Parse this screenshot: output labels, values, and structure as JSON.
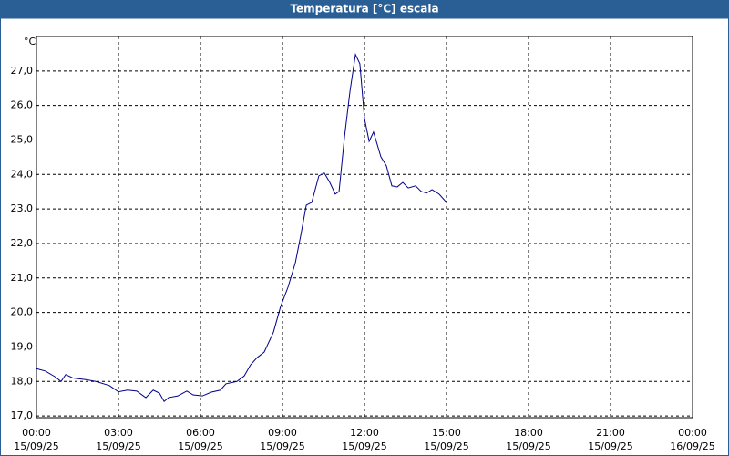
{
  "chart_data": {
    "type": "line",
    "title": "Temperatura [°C] escala",
    "y_unit": "°C",
    "xlim": [
      0,
      24
    ],
    "ylim": [
      16.95,
      28.0
    ],
    "grid": true,
    "color": "#00008b",
    "xticks": [
      {
        "value": 0,
        "label": "00:00",
        "sublabel": "15/09/25"
      },
      {
        "value": 3,
        "label": "03:00",
        "sublabel": "15/09/25"
      },
      {
        "value": 6,
        "label": "06:00",
        "sublabel": "15/09/25"
      },
      {
        "value": 9,
        "label": "09:00",
        "sublabel": "15/09/25"
      },
      {
        "value": 12,
        "label": "12:00",
        "sublabel": "15/09/25"
      },
      {
        "value": 15,
        "label": "15:00",
        "sublabel": "15/09/25"
      },
      {
        "value": 18,
        "label": "18:00",
        "sublabel": "15/09/25"
      },
      {
        "value": 21,
        "label": "21:00",
        "sublabel": "15/09/25"
      },
      {
        "value": 24,
        "label": "00:00",
        "sublabel": "16/09/25"
      }
    ],
    "yticks": [
      {
        "value": 17,
        "label": "17,0"
      },
      {
        "value": 18,
        "label": "18,0"
      },
      {
        "value": 19,
        "label": "19,0"
      },
      {
        "value": 20,
        "label": "20,0"
      },
      {
        "value": 21,
        "label": "21,0"
      },
      {
        "value": 22,
        "label": "22,0"
      },
      {
        "value": 23,
        "label": "23,0"
      },
      {
        "value": 24,
        "label": "24,0"
      },
      {
        "value": 25,
        "label": "25,0"
      },
      {
        "value": 26,
        "label": "26,0"
      },
      {
        "value": 27,
        "label": "27,0"
      }
    ],
    "x": [
      0,
      0.33,
      0.67,
      0.9,
      1.07,
      1.33,
      1.83,
      2.17,
      2.67,
      3,
      3.33,
      3.67,
      4,
      4.27,
      4.5,
      4.67,
      4.83,
      5.17,
      5.5,
      5.73,
      6.07,
      6.4,
      6.73,
      6.93,
      7.33,
      7.6,
      7.83,
      8.07,
      8.33,
      8.67,
      8.93,
      9.2,
      9.47,
      9.67,
      9.87,
      10.07,
      10.33,
      10.53,
      10.73,
      10.93,
      11.07,
      11.27,
      11.47,
      11.67,
      11.83,
      12,
      12.17,
      12.33,
      12.6,
      12.8,
      13,
      13.2,
      13.4,
      13.6,
      13.87,
      14.07,
      14.27,
      14.47,
      14.73,
      15
    ],
    "values": [
      18.37,
      18.3,
      18.14,
      18.0,
      18.2,
      18.1,
      18.05,
      18.0,
      17.88,
      17.7,
      17.75,
      17.72,
      17.53,
      17.75,
      17.66,
      17.42,
      17.53,
      17.58,
      17.72,
      17.61,
      17.58,
      17.69,
      17.75,
      17.93,
      18.0,
      18.16,
      18.48,
      18.69,
      18.85,
      19.43,
      20.17,
      20.73,
      21.44,
      22.24,
      23.11,
      23.19,
      23.96,
      24.04,
      23.77,
      23.43,
      23.51,
      25.1,
      26.42,
      27.48,
      27.21,
      25.62,
      24.96,
      25.23,
      24.51,
      24.25,
      23.67,
      23.64,
      23.77,
      23.61,
      23.67,
      23.51,
      23.46,
      23.56,
      23.43,
      23.19
    ]
  }
}
